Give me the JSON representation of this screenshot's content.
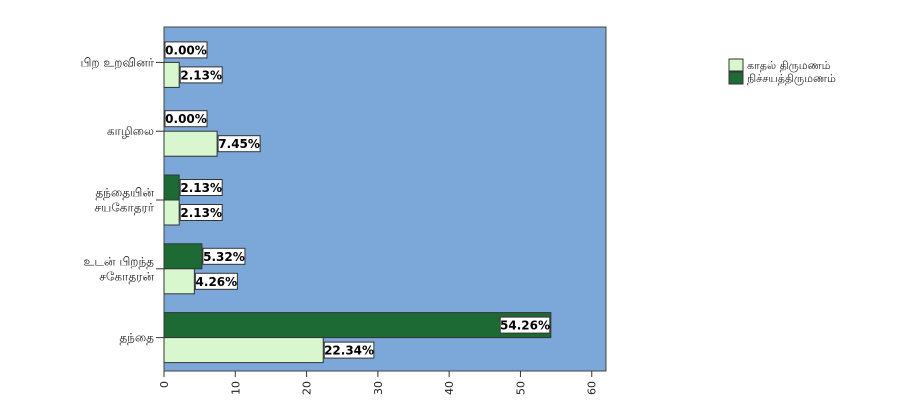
{
  "chart_data": {
    "type": "bar",
    "orientation": "horizontal",
    "categories": [
      [
        "பிற உறவினர்"
      ],
      [
        "காழிலை"
      ],
      [
        "தந்தையின்",
        "சயகோதரர்"
      ],
      [
        "உடன் பிறந்த",
        "சகோதரன்"
      ],
      [
        "தந்தை"
      ]
    ],
    "series": [
      {
        "name": "நிச்சயத்திருமணம்",
        "color": "#1e6a34",
        "values": [
          0.0,
          0.0,
          2.13,
          5.32,
          54.26
        ],
        "labels": [
          "0.00%",
          "0.00%",
          "2.13%",
          "5.32%",
          "54.26%"
        ]
      },
      {
        "name": "காதல் திருமணம்",
        "color": "#d9f7cf",
        "values": [
          2.13,
          7.45,
          2.13,
          4.26,
          22.34
        ],
        "labels": [
          "2.13%",
          "7.45%",
          "2.13%",
          "4.26%",
          "22.34%"
        ]
      }
    ],
    "legend": [
      "காதல் திருமணம்",
      "நிச்சயத்திருமணம்"
    ],
    "legend_position": "top-right",
    "xlim": [
      0,
      62
    ],
    "xticks": [
      "0",
      "10",
      "20",
      "30",
      "40",
      "50",
      "60"
    ],
    "plot_background": "#7ba8d8",
    "grid": false
  }
}
